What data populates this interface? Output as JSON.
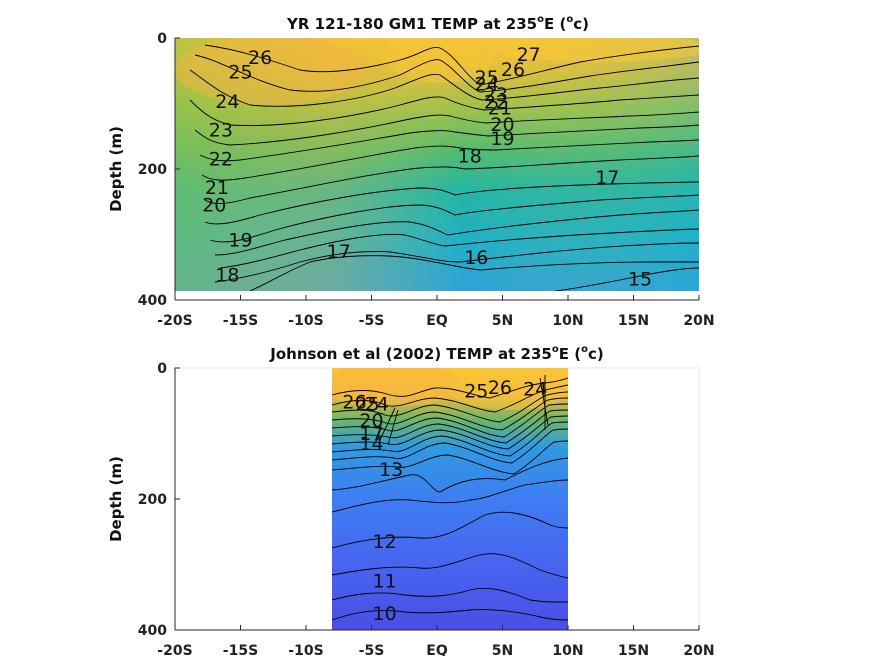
{
  "chart_data": [
    {
      "type": "heatmap",
      "title": "YR 121-180 GM1 TEMP at 235",
      "title_degree": "o",
      "title_unit_open": "E (",
      "title_unit_sup": "o",
      "title_unit_close": "c)",
      "ylabel": "Depth (m)",
      "xlabel": "",
      "xlim": [
        -20,
        20
      ],
      "ylim": [
        400,
        0
      ],
      "x_ticks": [
        -20,
        -15,
        -10,
        -5,
        0,
        5,
        10,
        15,
        20
      ],
      "x_tick_labels": [
        "-20S",
        "-15S",
        "-10S",
        "-5S",
        "EQ",
        "5N",
        "10N",
        "15N",
        "20N"
      ],
      "y_ticks": [
        0,
        200,
        400
      ],
      "y_tick_labels": [
        "0",
        "200",
        "400"
      ],
      "data_extent": {
        "x": [
          -20,
          20
        ],
        "depth": [
          0,
          385
        ]
      },
      "contour_labels": [
        {
          "text": "26",
          "lat": -13.5,
          "depth": 40
        },
        {
          "text": "25",
          "lat": -15.0,
          "depth": 62
        },
        {
          "text": "24",
          "lat": -16.0,
          "depth": 107
        },
        {
          "text": "23",
          "lat": -16.5,
          "depth": 150
        },
        {
          "text": "22",
          "lat": -16.5,
          "depth": 195
        },
        {
          "text": "21",
          "lat": -16.8,
          "depth": 238
        },
        {
          "text": "20",
          "lat": -17.0,
          "depth": 265
        },
        {
          "text": "19",
          "lat": -15.0,
          "depth": 318
        },
        {
          "text": "18",
          "lat": -16.0,
          "depth": 372
        },
        {
          "text": "17",
          "lat": -7.5,
          "depth": 336
        },
        {
          "text": "16",
          "lat": 3.0,
          "depth": 345
        },
        {
          "text": "15",
          "lat": 15.5,
          "depth": 378
        },
        {
          "text": "17",
          "lat": 13.0,
          "depth": 223
        },
        {
          "text": "18",
          "lat": 2.5,
          "depth": 190
        },
        {
          "text": "19",
          "lat": 5.0,
          "depth": 163
        },
        {
          "text": "20",
          "lat": 5.0,
          "depth": 142
        },
        {
          "text": "21",
          "lat": 4.8,
          "depth": 117
        },
        {
          "text": "22",
          "lat": 4.5,
          "depth": 108
        },
        {
          "text": "23",
          "lat": 4.5,
          "depth": 96
        },
        {
          "text": "24",
          "lat": 3.8,
          "depth": 80
        },
        {
          "text": "25",
          "lat": 3.8,
          "depth": 70
        },
        {
          "text": "26",
          "lat": 5.8,
          "depth": 58
        },
        {
          "text": "27",
          "lat": 7.0,
          "depth": 35
        }
      ]
    },
    {
      "type": "heatmap",
      "title": "Johnson et al (2002) TEMP at 235",
      "title_degree": "o",
      "title_unit_open": "E (",
      "title_unit_sup": "o",
      "title_unit_close": "c)",
      "ylabel": "Depth (m)",
      "xlabel": "",
      "xlim": [
        -20,
        20
      ],
      "ylim": [
        400,
        0
      ],
      "x_ticks": [
        -20,
        -15,
        -10,
        -5,
        0,
        5,
        10,
        15,
        20
      ],
      "x_tick_labels": [
        "-20S",
        "-15S",
        "-10S",
        "-5S",
        "EQ",
        "5N",
        "10N",
        "15N",
        "20N"
      ],
      "y_ticks": [
        0,
        200,
        400
      ],
      "y_tick_labels": [
        "0",
        "200",
        "400"
      ],
      "data_extent": {
        "x": [
          -8,
          10
        ],
        "depth": [
          0,
          400
        ]
      },
      "contour_labels": [
        {
          "text": "26",
          "lat": -6.3,
          "depth": 62
        },
        {
          "text": "25",
          "lat": -5.3,
          "depth": 65
        },
        {
          "text": "24",
          "lat": -4.6,
          "depth": 65
        },
        {
          "text": "20",
          "lat": -5.0,
          "depth": 90
        },
        {
          "text": "17",
          "lat": -5.0,
          "depth": 110
        },
        {
          "text": "14",
          "lat": -5.0,
          "depth": 125
        },
        {
          "text": "13",
          "lat": -3.5,
          "depth": 165
        },
        {
          "text": "12",
          "lat": -4.0,
          "depth": 275
        },
        {
          "text": "11",
          "lat": -4.0,
          "depth": 335
        },
        {
          "text": "10",
          "lat": -4.0,
          "depth": 385
        },
        {
          "text": "25",
          "lat": 3.0,
          "depth": 45
        },
        {
          "text": "26",
          "lat": 4.8,
          "depth": 40
        },
        {
          "text": "24",
          "lat": 7.5,
          "depth": 42
        }
      ]
    }
  ]
}
